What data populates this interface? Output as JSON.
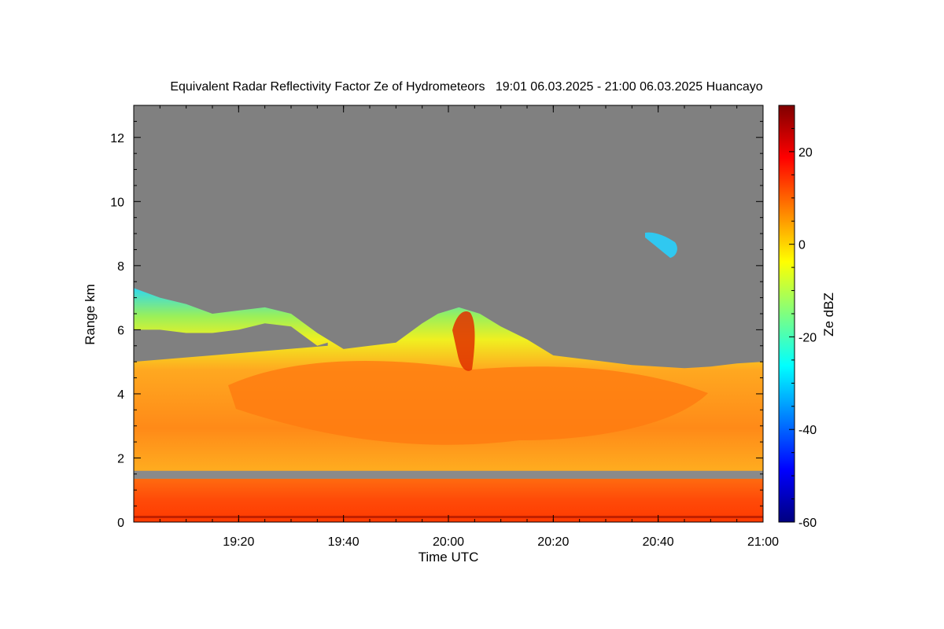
{
  "chart_data": {
    "type": "heatmap",
    "title": "Equivalent Radar Reflectivity Factor Ze of Hydrometeors   19:01 06.03.2025 - 21:00 06.03.2025 Huancayo",
    "xlabel": "Time UTC",
    "ylabel": "Range km",
    "x_range_minutes": [
      0,
      120
    ],
    "x_start_time": "19:00",
    "x_ticks": [
      {
        "minute": 20,
        "label": "19:20"
      },
      {
        "minute": 40,
        "label": "19:40"
      },
      {
        "minute": 60,
        "label": "20:00"
      },
      {
        "minute": 80,
        "label": "20:20"
      },
      {
        "minute": 100,
        "label": "20:40"
      },
      {
        "minute": 120,
        "label": "21:00"
      }
    ],
    "ylim": [
      0,
      13
    ],
    "y_ticks": [
      0,
      2,
      4,
      6,
      8,
      10,
      12
    ],
    "colorbar": {
      "label": "Ze dBZ",
      "range": [
        -60,
        30
      ],
      "ticks": [
        -60,
        -40,
        -20,
        0,
        20
      ],
      "colormap": "jet"
    },
    "no_data_color": "#808080",
    "echo_top_km": [
      {
        "minute": 0,
        "top": 7.3,
        "bottom": 5.0
      },
      {
        "minute": 5,
        "top": 7.0,
        "bottom": 5.0
      },
      {
        "minute": 10,
        "top": 6.8,
        "bottom": 4.9
      },
      {
        "minute": 15,
        "top": 6.5,
        "bottom": 4.9
      },
      {
        "minute": 20,
        "top": 6.6,
        "bottom": 5.0
      },
      {
        "minute": 25,
        "top": 6.7,
        "bottom": 5.2
      },
      {
        "minute": 30,
        "top": 6.5,
        "bottom": 5.4
      },
      {
        "minute": 35,
        "top": 5.9,
        "bottom": 5.5
      },
      {
        "minute": 40,
        "top": 5.4
      },
      {
        "minute": 45,
        "top": 5.5
      },
      {
        "minute": 50,
        "top": 5.6
      },
      {
        "minute": 55,
        "top": 6.2
      },
      {
        "minute": 58,
        "top": 6.5
      },
      {
        "minute": 62,
        "top": 6.7
      },
      {
        "minute": 66,
        "top": 6.5
      },
      {
        "minute": 70,
        "top": 6.1
      },
      {
        "minute": 75,
        "top": 5.7
      },
      {
        "minute": 80,
        "top": 5.2
      },
      {
        "minute": 85,
        "top": 5.1
      },
      {
        "minute": 90,
        "top": 5.0
      },
      {
        "minute": 95,
        "top": 4.9
      },
      {
        "minute": 100,
        "top": 4.85
      },
      {
        "minute": 105,
        "top": 4.8
      },
      {
        "minute": 110,
        "top": 4.85
      },
      {
        "minute": 115,
        "top": 4.95
      },
      {
        "minute": 120,
        "top": 5.0
      }
    ],
    "melting_layer_km": [
      1.35,
      1.6
    ],
    "max_reflectivity_dbz": 25
  }
}
